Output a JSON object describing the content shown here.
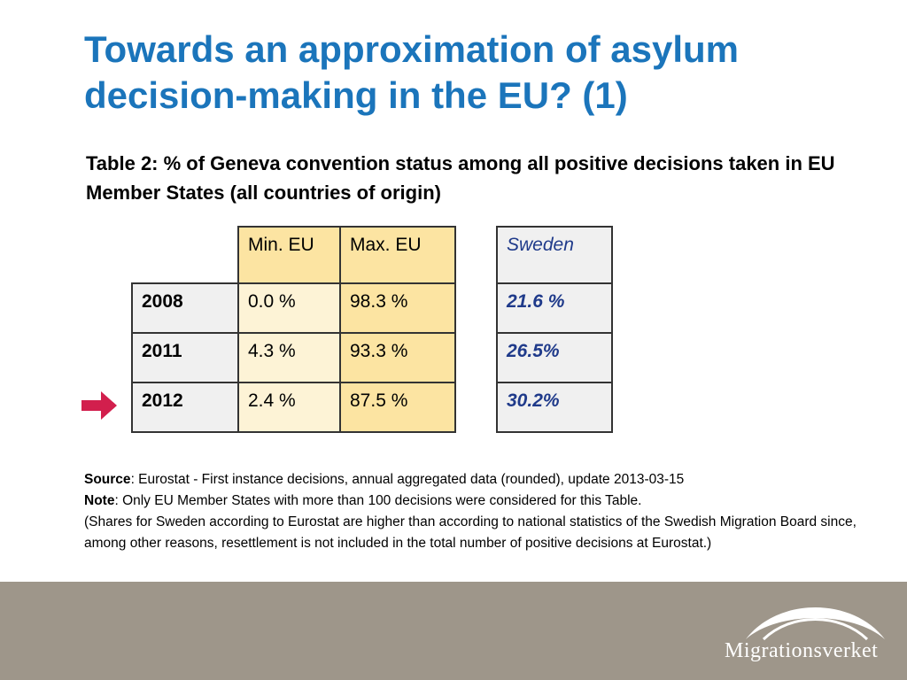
{
  "title": "Towards an approximation of asylum decision-making in the EU? (1)",
  "subtitle": "Table 2: % of Geneva convention status among all positive decisions taken in EU Member States (all countries of origin)",
  "table": {
    "headers": [
      "Min. EU",
      "Max. EU"
    ],
    "rows": [
      {
        "year": "2008",
        "min": "0.0 %",
        "max": "98.3 %"
      },
      {
        "year": "2011",
        "min": "4.3 %",
        "max": "93.3 %"
      },
      {
        "year": "2012",
        "min": "2.4 %",
        "max": "87.5 %"
      }
    ]
  },
  "sweden": {
    "header": "Sweden",
    "values": [
      "21.6 %",
      "26.5%",
      "30.2%"
    ]
  },
  "notes": {
    "source_label": "Source",
    "source_text": ": Eurostat - First instance decisions, annual aggregated data (rounded), update 2013-03-15",
    "note_label": "Note",
    "note_text": ": Only EU Member States with more than 100 decisions were considered for this Table.",
    "extra": "(Shares for Sweden according to Eurostat are higher than according to national statistics of the Swedish Migration Board since, among other reasons, resettlement is not included in the total number of positive decisions at Eurostat.)"
  },
  "footer": {
    "logo_text": "Migrationsverket"
  },
  "icons": {
    "arrow": "arrow-right-icon",
    "logo": "bridge-arc-logo"
  },
  "colors": {
    "title": "#1b75bb",
    "arrow": "#d21f4d",
    "footer": "#9e968a",
    "header_fill": "#fce4a2",
    "min_fill": "#fdf3d6",
    "sweden_text": "#1f3a8a"
  }
}
